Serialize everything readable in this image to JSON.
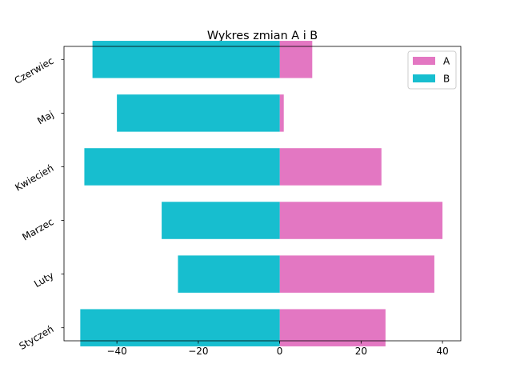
{
  "chart_data": {
    "type": "bar",
    "orientation": "horizontal",
    "title": "Wykres zmian A i B",
    "xlabel": "",
    "ylabel": "",
    "categories": [
      "Styczeń",
      "Luty",
      "Marzec",
      "Kwiecień",
      "Maj",
      "Czerwiec"
    ],
    "series": [
      {
        "name": "A",
        "color": "#e377c2",
        "values": [
          26,
          38,
          40,
          25,
          1,
          8
        ]
      },
      {
        "name": "B",
        "color": "#17becf",
        "values": [
          -49,
          -25,
          -29,
          -48,
          -40,
          -46
        ]
      }
    ],
    "xlim": [
      -53,
      44.5
    ],
    "xticks": [
      -40,
      -20,
      0,
      20,
      40
    ],
    "xtick_labels": [
      "−40",
      "−20",
      "0",
      "20",
      "40"
    ],
    "grid": false,
    "legend_position": "upper right"
  }
}
